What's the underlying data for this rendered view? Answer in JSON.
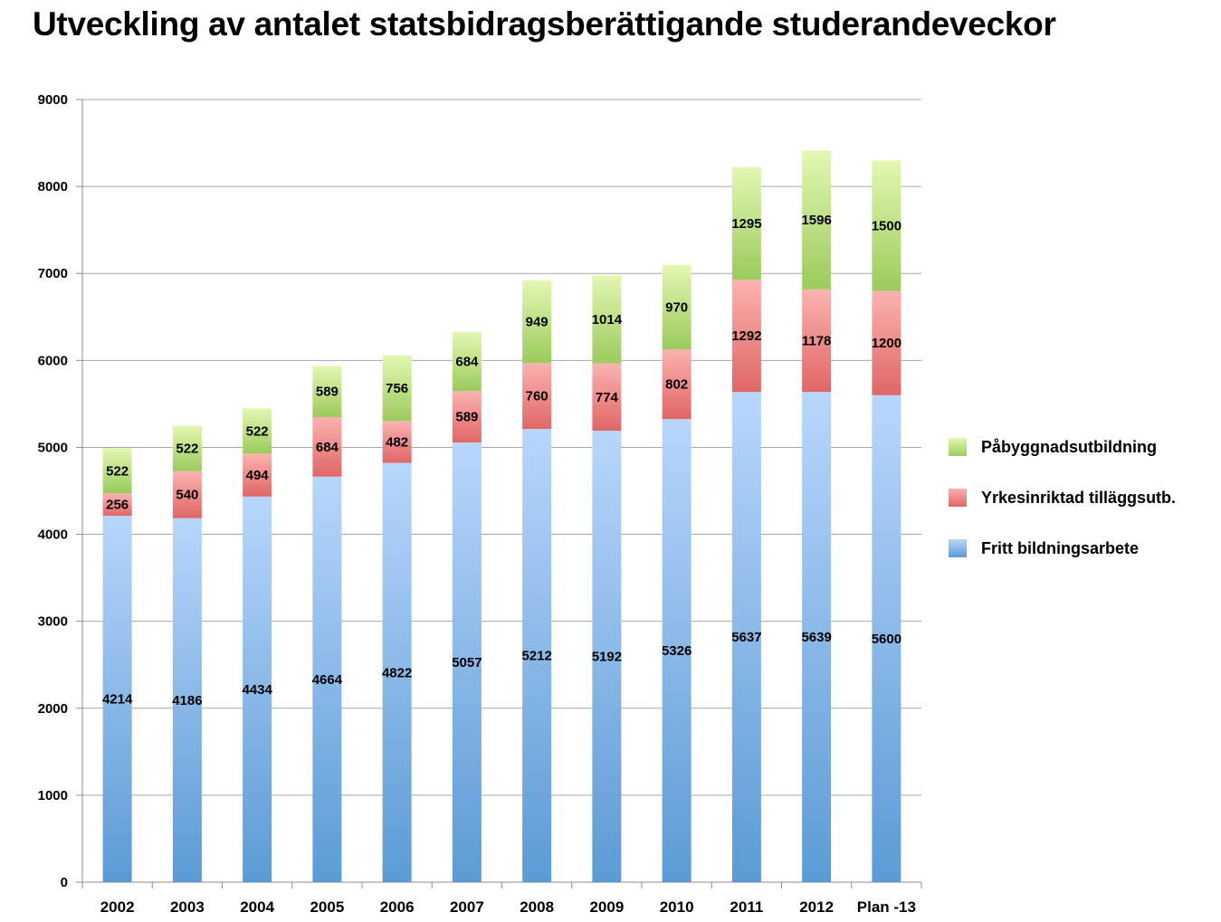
{
  "chart_data": {
    "type": "bar",
    "stacked": true,
    "title": "Utveckling av antalet statsbidragsberättigande studerandeveckor",
    "categories": [
      "2002",
      "2003",
      "2004",
      "2005",
      "2006",
      "2007",
      "2008",
      "2009",
      "2010",
      "2011",
      "2012",
      "Plan -13"
    ],
    "series": [
      {
        "name": "Fritt bildningsarbete",
        "color": "#5b9bd5",
        "values": [
          4214,
          4186,
          4434,
          4664,
          4822,
          5057,
          5212,
          5192,
          5326,
          5637,
          5639,
          5600
        ]
      },
      {
        "name": "Yrkesinriktad tilläggsutb.",
        "color": "#e06666",
        "values": [
          256,
          540,
          494,
          684,
          482,
          589,
          760,
          774,
          802,
          1292,
          1178,
          1200
        ]
      },
      {
        "name": "Påbyggnadsutbildning",
        "color": "#9bcb5c",
        "values": [
          522,
          522,
          522,
          589,
          756,
          684,
          949,
          1014,
          970,
          1295,
          1596,
          1500
        ]
      }
    ],
    "ylim": [
      0,
      9000
    ],
    "yticks": [
      0,
      1000,
      2000,
      3000,
      4000,
      5000,
      6000,
      7000,
      8000,
      9000
    ],
    "grid": true,
    "legend_position": "right"
  }
}
